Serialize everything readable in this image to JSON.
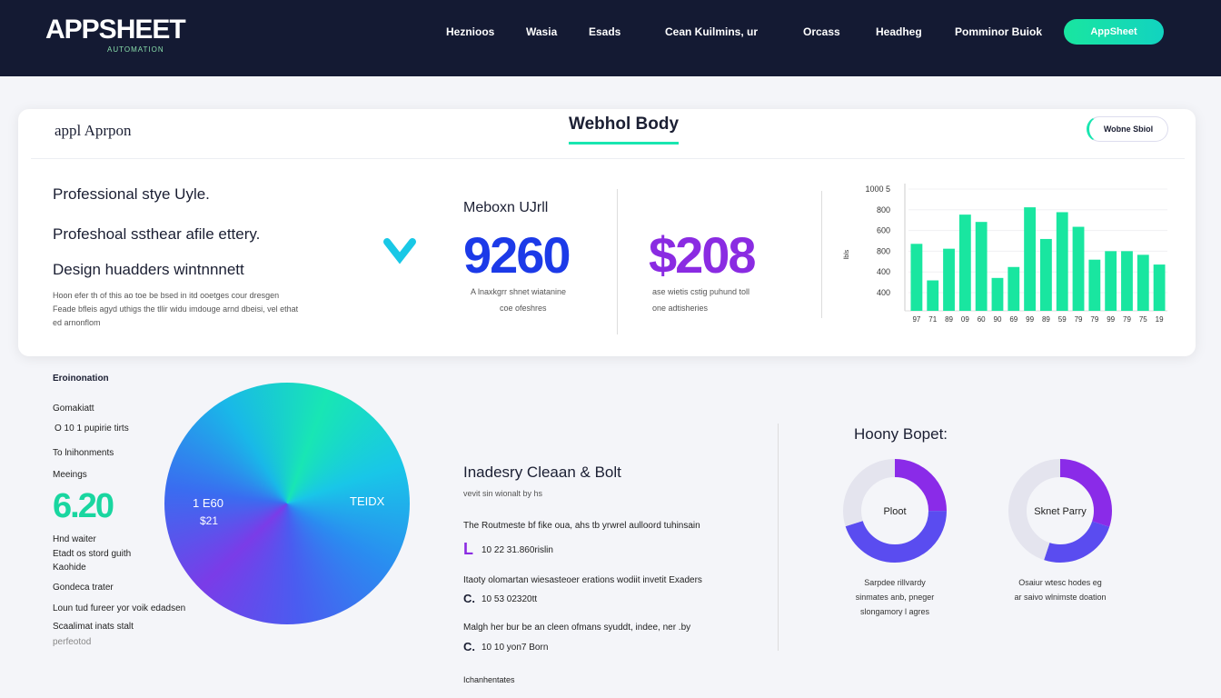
{
  "header": {
    "logo": "APPSHEET",
    "logo_sub": "AUTOMATION",
    "nav": [
      "Heznioos",
      "Wasia",
      "Esads",
      "Cean Kuilmins, ur",
      "Orcass",
      "Headheg",
      "Pomminor Buiok"
    ],
    "button": "AppSheet"
  },
  "card": {
    "logo": "appl Aprpon",
    "title": "Webhol Body",
    "button": "Wobne Sbiol",
    "headings": [
      "Professional stye Uyle.",
      "Profeshoal ssthear afile ettery.",
      "Design huadders wintnnnett"
    ],
    "paragraph": [
      "Hoon efer th of this ao toe be bsed in itd ooetges cour dresgen",
      "Feade bfleis agyd uthigs the tllir widu imdouge arnd dbeisi, vel ethat",
      "ed arnonflom"
    ],
    "stat_title": "Meboxn UJrll",
    "stats": [
      {
        "value": "9260",
        "caption": [
          "A lnaxkgrr shnet wiatanine",
          "coe ofeshres"
        ]
      },
      {
        "value": "$208",
        "caption": [
          "ase wietis cstig puhund toll",
          "one adtisheries"
        ]
      }
    ],
    "bar_chart": {
      "ylim": [
        0,
        100
      ],
      "ytick_labels": [
        "1000 5",
        "800",
        "600",
        "800",
        "400",
        "400"
      ],
      "axis_label": "lbls",
      "color": "#19e6a0",
      "categories": [
        "97",
        "71",
        "89",
        "09",
        "60",
        "90",
        "69",
        "99",
        "89",
        "59",
        "79",
        "79",
        "99",
        "79",
        "75",
        "19"
      ],
      "values": [
        55,
        25,
        51,
        79,
        73,
        27,
        36,
        85,
        59,
        81,
        69,
        42,
        49,
        49,
        46,
        38
      ]
    }
  },
  "sidebar": [
    "Eroinonation",
    "Gomakiatt",
    "O 10 1 pupirie tirts",
    "To lnihonments",
    "Meeings",
    "6.20",
    "Hnd waiter",
    "Etadt os stord guith",
    "Kaohide",
    "Gondeca trater",
    "Loun tud fureer yor voik edadsen",
    "Scaalimat inats stalt",
    "perfeotod"
  ],
  "pie": {
    "labels": [
      "1 E60",
      "$21",
      "TEIDX"
    ]
  },
  "article": {
    "title": "Inadesry Cleaan & Bolt",
    "subtitle": "vevit sin wionalt by hs",
    "items": [
      {
        "text": "The Routmeste bf fike oua, ahs tb yrwrel aulloord tuhinsain",
        "icon": "L",
        "meta": "10 22 31.860rislin"
      },
      {
        "text": "Itaoty olomartan wiesasteoer erations wodiit invetit Exaders",
        "icon": "C.",
        "meta": "10 53 02320tt"
      },
      {
        "text": "Malgh her bur be an cleen ofmans syuddt, indee, ner .by",
        "icon": "C.",
        "meta": "10 10 yon7 Born"
      }
    ],
    "footer": "Ichanhentates"
  },
  "donuts": {
    "title": "Hoony Bopet:",
    "charts": [
      {
        "label": "Ploot",
        "values": [
          25,
          45,
          30
        ],
        "colors": [
          "#8a2be8",
          "#5a4cf0",
          "#e4e4ee"
        ],
        "caption": [
          "Sarpdee rillvardy",
          "sinmates anb, pneger",
          "slongamory l agres"
        ]
      },
      {
        "label": "Sknet Parry",
        "values": [
          30,
          25,
          45
        ],
        "colors": [
          "#8a2be8",
          "#5a4cf0",
          "#e4e4ee"
        ],
        "caption": [
          "Osaiur wtesc hodes eg",
          "ar saivo wlnimste doation"
        ]
      }
    ]
  }
}
